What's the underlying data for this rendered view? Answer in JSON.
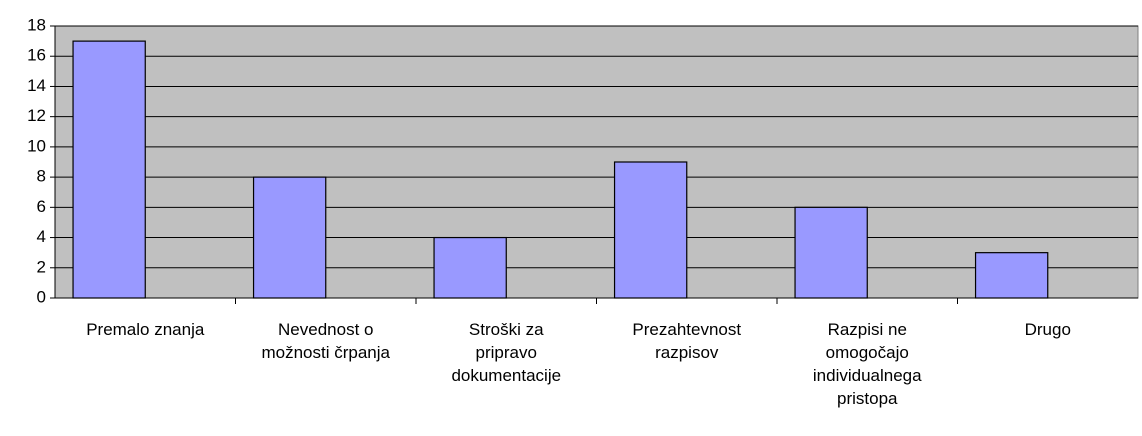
{
  "chart_data": {
    "type": "bar",
    "categories": [
      "Premalo znanja",
      "Nevednost o možnosti črpanja",
      "Stroški za pripravo dokumentacije",
      "Prezahtevnost razpisov",
      "Razpisi ne omogočajo individualnega pristopa",
      "Drugo"
    ],
    "values": [
      17,
      8,
      4,
      9,
      6,
      3
    ],
    "color": "#9999ff",
    "ylim": [
      0,
      18
    ],
    "yticks": [
      0,
      2,
      4,
      6,
      8,
      10,
      12,
      14,
      16,
      18
    ],
    "grid": true
  }
}
